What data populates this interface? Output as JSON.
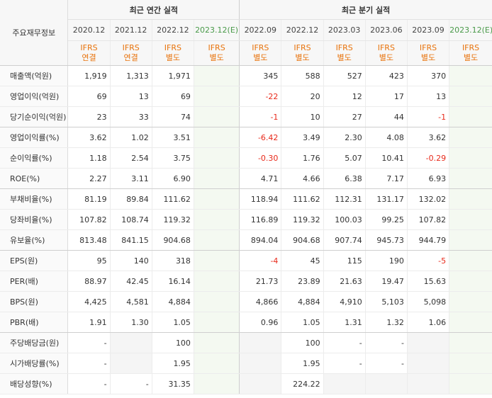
{
  "header": {
    "row_label": "주요재무정보",
    "annual_title": "최근 연간 실적",
    "quarterly_title": "최근 분기 실적",
    "annual_periods": [
      "2020.12",
      "2021.12",
      "2022.12",
      "2023.12(E)"
    ],
    "quarterly_periods": [
      "2022.09",
      "2022.12",
      "2023.03",
      "2023.06",
      "2023.09",
      "2023.12(E)"
    ],
    "annual_standards": [
      [
        "IFRS",
        "연결"
      ],
      [
        "IFRS",
        "연결"
      ],
      [
        "IFRS",
        "별도"
      ],
      [
        "IFRS",
        "별도"
      ]
    ],
    "quarterly_standards": [
      [
        "IFRS",
        "별도"
      ],
      [
        "IFRS",
        "별도"
      ],
      [
        "IFRS",
        "별도"
      ],
      [
        "IFRS",
        "별도"
      ],
      [
        "IFRS",
        "별도"
      ],
      [
        "IFRS",
        "별도"
      ]
    ]
  },
  "rows": [
    {
      "label": "매출액(억원)",
      "annual": [
        "1,919",
        "1,313",
        "1,971",
        ""
      ],
      "quarterly": [
        "345",
        "588",
        "527",
        "423",
        "370",
        ""
      ]
    },
    {
      "label": "영업이익(억원)",
      "annual": [
        "69",
        "13",
        "69",
        ""
      ],
      "quarterly": [
        "-22",
        "20",
        "12",
        "17",
        "13",
        ""
      ]
    },
    {
      "label": "당기순이익(억원)",
      "annual": [
        "23",
        "33",
        "74",
        ""
      ],
      "quarterly": [
        "-1",
        "10",
        "27",
        "44",
        "-1",
        ""
      ]
    },
    {
      "label": "영업이익률(%)",
      "annual": [
        "3.62",
        "1.02",
        "3.51",
        ""
      ],
      "quarterly": [
        "-6.42",
        "3.49",
        "2.30",
        "4.08",
        "3.62",
        ""
      ]
    },
    {
      "label": "순이익률(%)",
      "annual": [
        "1.18",
        "2.54",
        "3.75",
        ""
      ],
      "quarterly": [
        "-0.30",
        "1.76",
        "5.07",
        "10.41",
        "-0.29",
        ""
      ]
    },
    {
      "label": "ROE(%)",
      "annual": [
        "2.27",
        "3.11",
        "6.90",
        ""
      ],
      "quarterly": [
        "4.71",
        "4.66",
        "6.38",
        "7.17",
        "6.93",
        ""
      ]
    },
    {
      "label": "부채비율(%)",
      "annual": [
        "81.19",
        "89.84",
        "111.62",
        ""
      ],
      "quarterly": [
        "118.94",
        "111.62",
        "112.31",
        "131.17",
        "132.02",
        ""
      ]
    },
    {
      "label": "당좌비율(%)",
      "annual": [
        "107.82",
        "108.74",
        "119.32",
        ""
      ],
      "quarterly": [
        "116.89",
        "119.32",
        "100.03",
        "99.25",
        "107.82",
        ""
      ]
    },
    {
      "label": "유보율(%)",
      "annual": [
        "813.48",
        "841.15",
        "904.68",
        ""
      ],
      "quarterly": [
        "894.04",
        "904.68",
        "907.74",
        "945.73",
        "944.79",
        ""
      ]
    },
    {
      "label": "EPS(원)",
      "annual": [
        "95",
        "140",
        "318",
        ""
      ],
      "quarterly": [
        "-4",
        "45",
        "115",
        "190",
        "-5",
        ""
      ]
    },
    {
      "label": "PER(배)",
      "annual": [
        "88.97",
        "42.45",
        "16.14",
        ""
      ],
      "quarterly": [
        "21.73",
        "23.89",
        "21.63",
        "19.47",
        "15.63",
        ""
      ]
    },
    {
      "label": "BPS(원)",
      "annual": [
        "4,425",
        "4,581",
        "4,884",
        ""
      ],
      "quarterly": [
        "4,866",
        "4,884",
        "4,910",
        "5,103",
        "5,098",
        ""
      ]
    },
    {
      "label": "PBR(배)",
      "annual": [
        "1.91",
        "1.30",
        "1.05",
        ""
      ],
      "quarterly": [
        "0.96",
        "1.05",
        "1.31",
        "1.32",
        "1.06",
        ""
      ]
    },
    {
      "label": "주당배당금(원)",
      "annual": [
        "-",
        "",
        "100",
        ""
      ],
      "quarterly": [
        "",
        "100",
        "-",
        "-",
        "",
        ""
      ]
    },
    {
      "label": "시가배당률(%)",
      "annual": [
        "-",
        "",
        "1.95",
        ""
      ],
      "quarterly": [
        "",
        "1.95",
        "-",
        "-",
        "",
        ""
      ]
    },
    {
      "label": "배당성향(%)",
      "annual": [
        "-",
        "-",
        "31.35",
        ""
      ],
      "quarterly": [
        "",
        "224.22",
        "",
        "",
        "",
        ""
      ]
    }
  ],
  "colors": {
    "negative": "#e8291a",
    "standard": "#e8730c",
    "estimate_bg": "#f4f9f1",
    "estimate_text": "#4a9a4a"
  }
}
